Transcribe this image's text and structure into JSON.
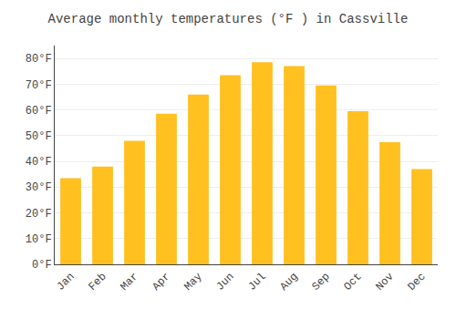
{
  "chart_data": {
    "type": "bar",
    "title": "Average monthly temperatures (°F ) in Cassville",
    "categories": [
      "Jan",
      "Feb",
      "Mar",
      "Apr",
      "May",
      "Jun",
      "Jul",
      "Aug",
      "Sep",
      "Oct",
      "Nov",
      "Dec"
    ],
    "values": [
      33.5,
      38.0,
      48.0,
      58.5,
      66.0,
      73.5,
      78.5,
      77.0,
      69.5,
      59.5,
      47.5,
      37.0
    ],
    "color": "#FFC020",
    "ylim": [
      0,
      85
    ],
    "yticks": [
      {
        "value": 0,
        "label": "0°F"
      },
      {
        "value": 10,
        "label": "10°F"
      },
      {
        "value": 20,
        "label": "20°F"
      },
      {
        "value": 30,
        "label": "30°F"
      },
      {
        "value": 40,
        "label": "40°F"
      },
      {
        "value": 50,
        "label": "50°F"
      },
      {
        "value": 60,
        "label": "60°F"
      },
      {
        "value": 70,
        "label": "70°F"
      },
      {
        "value": 80,
        "label": "80°F"
      }
    ],
    "grid": true
  }
}
